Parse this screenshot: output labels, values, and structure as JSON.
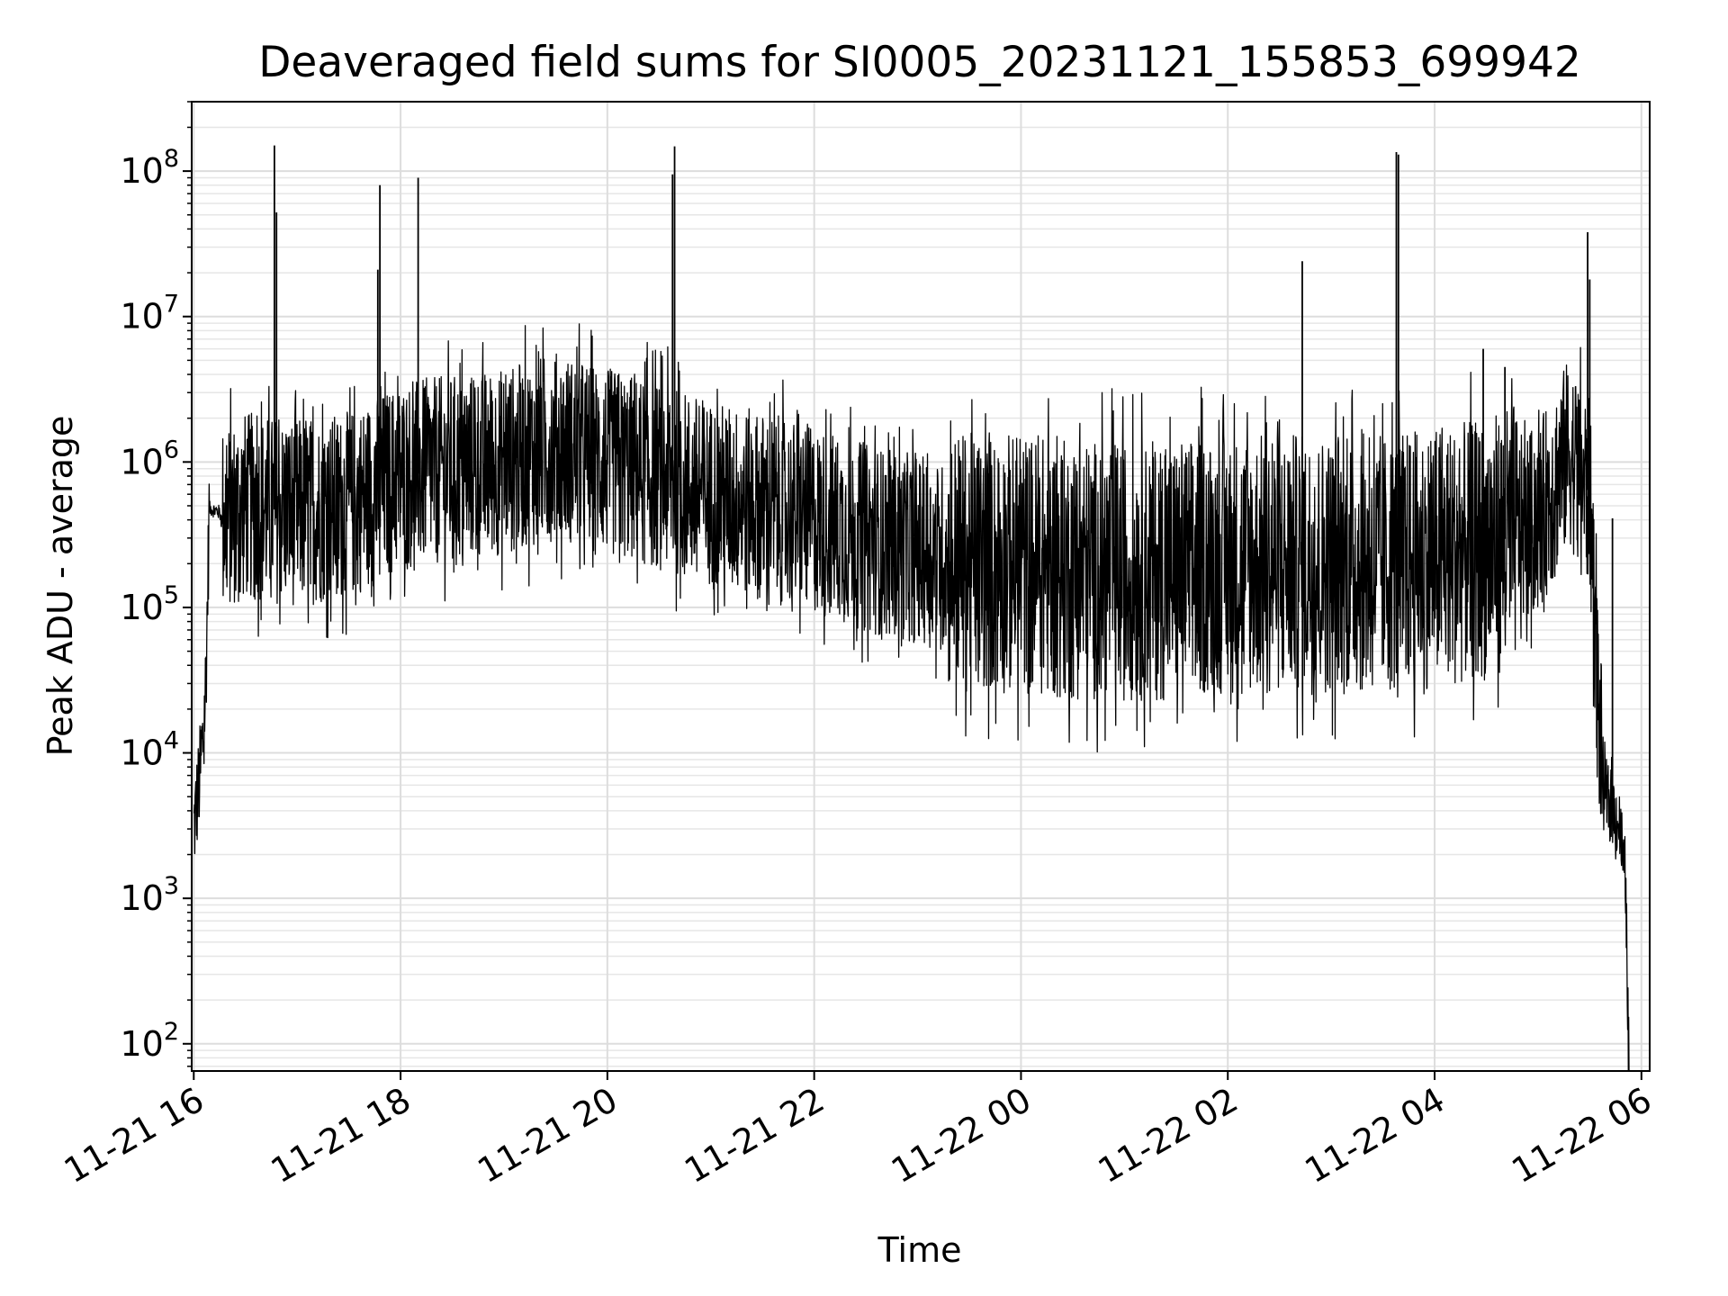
{
  "chart_data": {
    "type": "line",
    "title": "Deaveraged field sums for SI0005_20231121_155853_699942",
    "xlabel": "Time",
    "ylabel": "Peak ADU - average",
    "yscale": "log",
    "ylim": [
      65,
      300000000
    ],
    "xlim_hours": [
      -0.02,
      14.08
    ],
    "grid": true,
    "line_color": "#000000",
    "x_ticks": [
      {
        "label": "11-21 16",
        "hour": 0
      },
      {
        "label": "11-21 18",
        "hour": 2
      },
      {
        "label": "11-21 20",
        "hour": 4
      },
      {
        "label": "11-21 22",
        "hour": 6
      },
      {
        "label": "11-22 00",
        "hour": 8
      },
      {
        "label": "11-22 02",
        "hour": 10
      },
      {
        "label": "11-22 04",
        "hour": 12
      },
      {
        "label": "11-22 06",
        "hour": 14
      }
    ],
    "y_ticks": [
      {
        "base": "10",
        "exp": "2",
        "value": 100
      },
      {
        "base": "10",
        "exp": "3",
        "value": 1000
      },
      {
        "base": "10",
        "exp": "4",
        "value": 10000
      },
      {
        "base": "10",
        "exp": "5",
        "value": 100000
      },
      {
        "base": "10",
        "exp": "6",
        "value": 1000000
      },
      {
        "base": "10",
        "exp": "7",
        "value": 10000000
      },
      {
        "base": "10",
        "exp": "8",
        "value": 100000000
      }
    ],
    "series": [
      {
        "x_hours": [
          0.0,
          0.05,
          0.1,
          0.12,
          0.15,
          0.25,
          0.27,
          0.5,
          1.0,
          1.5,
          2.0,
          2.5,
          3.0,
          3.5,
          4.0,
          4.5,
          5.0,
          5.5,
          6.0,
          6.5,
          7.0,
          7.5,
          8.0,
          8.5,
          9.0,
          9.5,
          10.0,
          10.5,
          11.0,
          11.5,
          12.0,
          12.5,
          13.0,
          13.3,
          13.5,
          13.6,
          13.65,
          13.7,
          13.8,
          13.85,
          13.88
        ],
        "values": [
          3000,
          6000,
          15000,
          40000,
          480000,
          450000,
          400000,
          500000,
          450000,
          500000,
          800000,
          900000,
          1000000,
          1300000,
          1000000,
          800000,
          600000,
          500000,
          400000,
          300000,
          250000,
          200000,
          200000,
          180000,
          180000,
          180000,
          200000,
          200000,
          200000,
          200000,
          220000,
          250000,
          400000,
          1200000,
          600000,
          12000,
          5000,
          4500,
          3000,
          1000,
          65
        ]
      }
    ],
    "spikes": [
      {
        "hour": 0.78,
        "value": 150000000
      },
      {
        "hour": 0.8,
        "value": 52000000
      },
      {
        "hour": 1.8,
        "value": 80000000
      },
      {
        "hour": 1.78,
        "value": 21000000
      },
      {
        "hour": 2.17,
        "value": 90000000
      },
      {
        "hour": 4.65,
        "value": 148000000
      },
      {
        "hour": 4.63,
        "value": 95000000
      },
      {
        "hour": 10.72,
        "value": 24000000
      },
      {
        "hour": 11.63,
        "value": 135000000
      },
      {
        "hour": 11.65,
        "value": 130000000
      },
      {
        "hour": 12.47,
        "value": 6000000
      },
      {
        "hour": 12.68,
        "value": 4500000
      },
      {
        "hour": 13.48,
        "value": 38000000
      },
      {
        "hour": 13.5,
        "value": 18000000
      },
      {
        "hour": 13.72,
        "value": 410000
      }
    ]
  }
}
